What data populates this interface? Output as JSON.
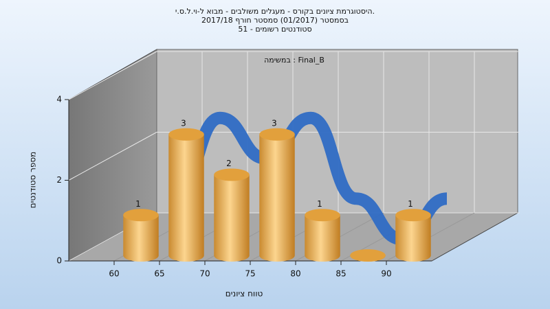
{
  "chart_data": {
    "type": "histogram",
    "title": "היסטוגרמת ציונים בקורס - מעגלים משולבים - מבוא ל-וי.ל.ס.י.",
    "subtitle": "בסמסטר  (01/2017)  סמסטר חורף  2017/18",
    "subtitle2": "סטודנטים רשומים - 51",
    "annotation": "במשימה : Final_B",
    "xlabel": "טווח ציונים",
    "ylabel": "מספר סטודנטים",
    "bins": [
      60,
      65,
      70,
      75,
      80,
      85,
      90,
      95
    ],
    "counts": [
      1,
      3,
      2,
      3,
      1,
      0,
      1
    ],
    "color": "#e8a84a",
    "line_color": "#2f6cc4",
    "xlim": [
      55,
      95
    ],
    "xticks": [
      60,
      65,
      70,
      75,
      80,
      85,
      90
    ],
    "ylim": [
      0,
      4
    ],
    "yticks": [
      0,
      2,
      4
    ],
    "grid": true
  }
}
